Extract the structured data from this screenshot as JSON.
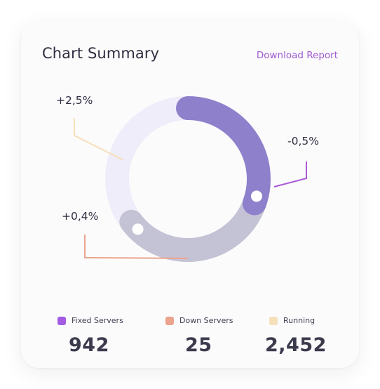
{
  "header": {
    "title": "Chart Summary",
    "download_label": "Download Report"
  },
  "chart_data": {
    "type": "donut",
    "segments": [
      {
        "name": "Fixed Servers",
        "color": "#8f80cc",
        "start_deg": 0,
        "end_deg": 110
      },
      {
        "name": "Down Servers",
        "color": "#c4c3d5",
        "start_deg": 110,
        "end_deg": 233
      },
      {
        "name": "Running",
        "color": "#efedf9",
        "start_deg": 233,
        "end_deg": 360
      }
    ],
    "annotations": [
      {
        "text": "+2,5%",
        "color": "#f6dfb9"
      },
      {
        "text": "-0,5%",
        "color": "#a85ad6"
      },
      {
        "text": "+0,4%",
        "color": "#eca38e"
      }
    ]
  },
  "legend": [
    {
      "label": "Fixed Servers",
      "value": "942",
      "color": "#a35be2"
    },
    {
      "label": "Down Servers",
      "value": "25",
      "color": "#eca38e"
    },
    {
      "label": "Running",
      "value": "2,452",
      "color": "#f5e0bc"
    }
  ]
}
